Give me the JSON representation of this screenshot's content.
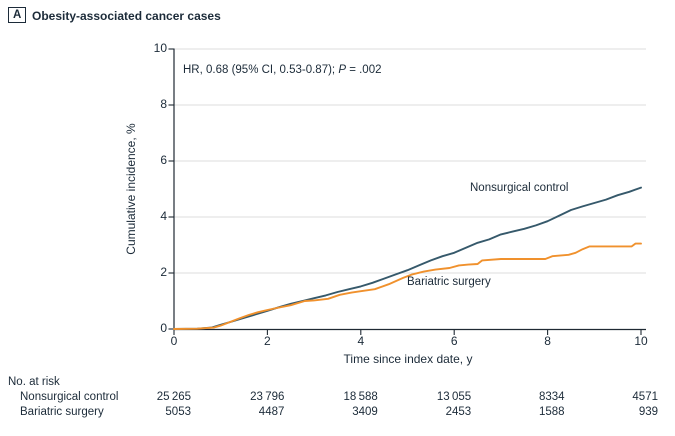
{
  "panel": {
    "label": "A",
    "title": "Obesity-associated cancer cases"
  },
  "colors": {
    "text": "#1C2B39",
    "axis": "#1F2933",
    "grid": "#DDDDDD",
    "nonsurgical": "#36596B",
    "bariatric": "#F0912D"
  },
  "chart_data": {
    "type": "line",
    "title": "Obesity-associated cancer cases",
    "xlabel": "Time since index date, y",
    "ylabel": "Cumulative incidence, %",
    "xlim": [
      0,
      10
    ],
    "ylim": [
      0,
      10
    ],
    "x_ticks": [
      0,
      2,
      4,
      6,
      8,
      10
    ],
    "y_ticks": [
      0,
      2,
      4,
      6,
      8,
      10
    ],
    "grid": "horizontal gridlines at 2,4,6,8,10",
    "legend_position": "inline curve labels",
    "hr_annotation": {
      "lead": "HR, 0.68 (95% CI, 0.53-0.87); ",
      "p_symbol": "P",
      "p_value": " = .002"
    },
    "series": [
      {
        "name": "Nonsurgical control",
        "color": "#36596B",
        "x": [
          0,
          0.5,
          0.8,
          1.0,
          1.25,
          1.5,
          1.75,
          2.0,
          2.25,
          2.5,
          2.75,
          3.0,
          3.25,
          3.5,
          3.75,
          4.0,
          4.25,
          4.5,
          4.75,
          5.0,
          5.25,
          5.5,
          5.75,
          6.0,
          6.25,
          6.5,
          6.75,
          7.0,
          7.25,
          7.5,
          7.75,
          8.0,
          8.25,
          8.5,
          8.75,
          9.0,
          9.25,
          9.5,
          9.75,
          10.0
        ],
        "y": [
          0,
          0.01,
          0.05,
          0.15,
          0.27,
          0.4,
          0.52,
          0.65,
          0.78,
          0.9,
          1.0,
          1.1,
          1.2,
          1.32,
          1.42,
          1.52,
          1.65,
          1.8,
          1.95,
          2.1,
          2.28,
          2.45,
          2.6,
          2.72,
          2.9,
          3.08,
          3.2,
          3.38,
          3.48,
          3.58,
          3.7,
          3.85,
          4.05,
          4.25,
          4.38,
          4.5,
          4.62,
          4.78,
          4.9,
          5.05
        ]
      },
      {
        "name": "Bariatric surgery",
        "color": "#F0912D",
        "x": [
          0,
          0.5,
          0.85,
          1.0,
          1.2,
          1.4,
          1.6,
          1.8,
          2.0,
          2.2,
          2.5,
          2.8,
          3.0,
          3.3,
          3.55,
          3.8,
          4.0,
          4.3,
          4.6,
          4.9,
          5.1,
          5.35,
          5.6,
          5.9,
          6.1,
          6.3,
          6.5,
          6.6,
          7.0,
          7.4,
          7.95,
          8.1,
          8.45,
          8.6,
          8.75,
          8.9,
          9.8,
          9.88,
          10.0
        ],
        "y": [
          0,
          0.01,
          0.05,
          0.12,
          0.25,
          0.38,
          0.5,
          0.6,
          0.68,
          0.75,
          0.85,
          1.0,
          1.02,
          1.08,
          1.22,
          1.3,
          1.35,
          1.42,
          1.6,
          1.82,
          1.95,
          2.05,
          2.12,
          2.18,
          2.27,
          2.3,
          2.32,
          2.45,
          2.5,
          2.5,
          2.5,
          2.6,
          2.65,
          2.72,
          2.85,
          2.95,
          2.95,
          3.05,
          3.05
        ]
      }
    ]
  },
  "risk_table": {
    "heading": "No. at risk",
    "times": [
      0,
      2,
      4,
      6,
      8,
      10
    ],
    "rows": [
      {
        "label": "Nonsurgical control",
        "values": [
          "25 265",
          "23 796",
          "18 588",
          "13 055",
          "8334",
          "4571"
        ]
      },
      {
        "label": "Bariatric surgery",
        "values": [
          "5053",
          "4487",
          "3409",
          "2453",
          "1588",
          "939"
        ]
      }
    ]
  }
}
